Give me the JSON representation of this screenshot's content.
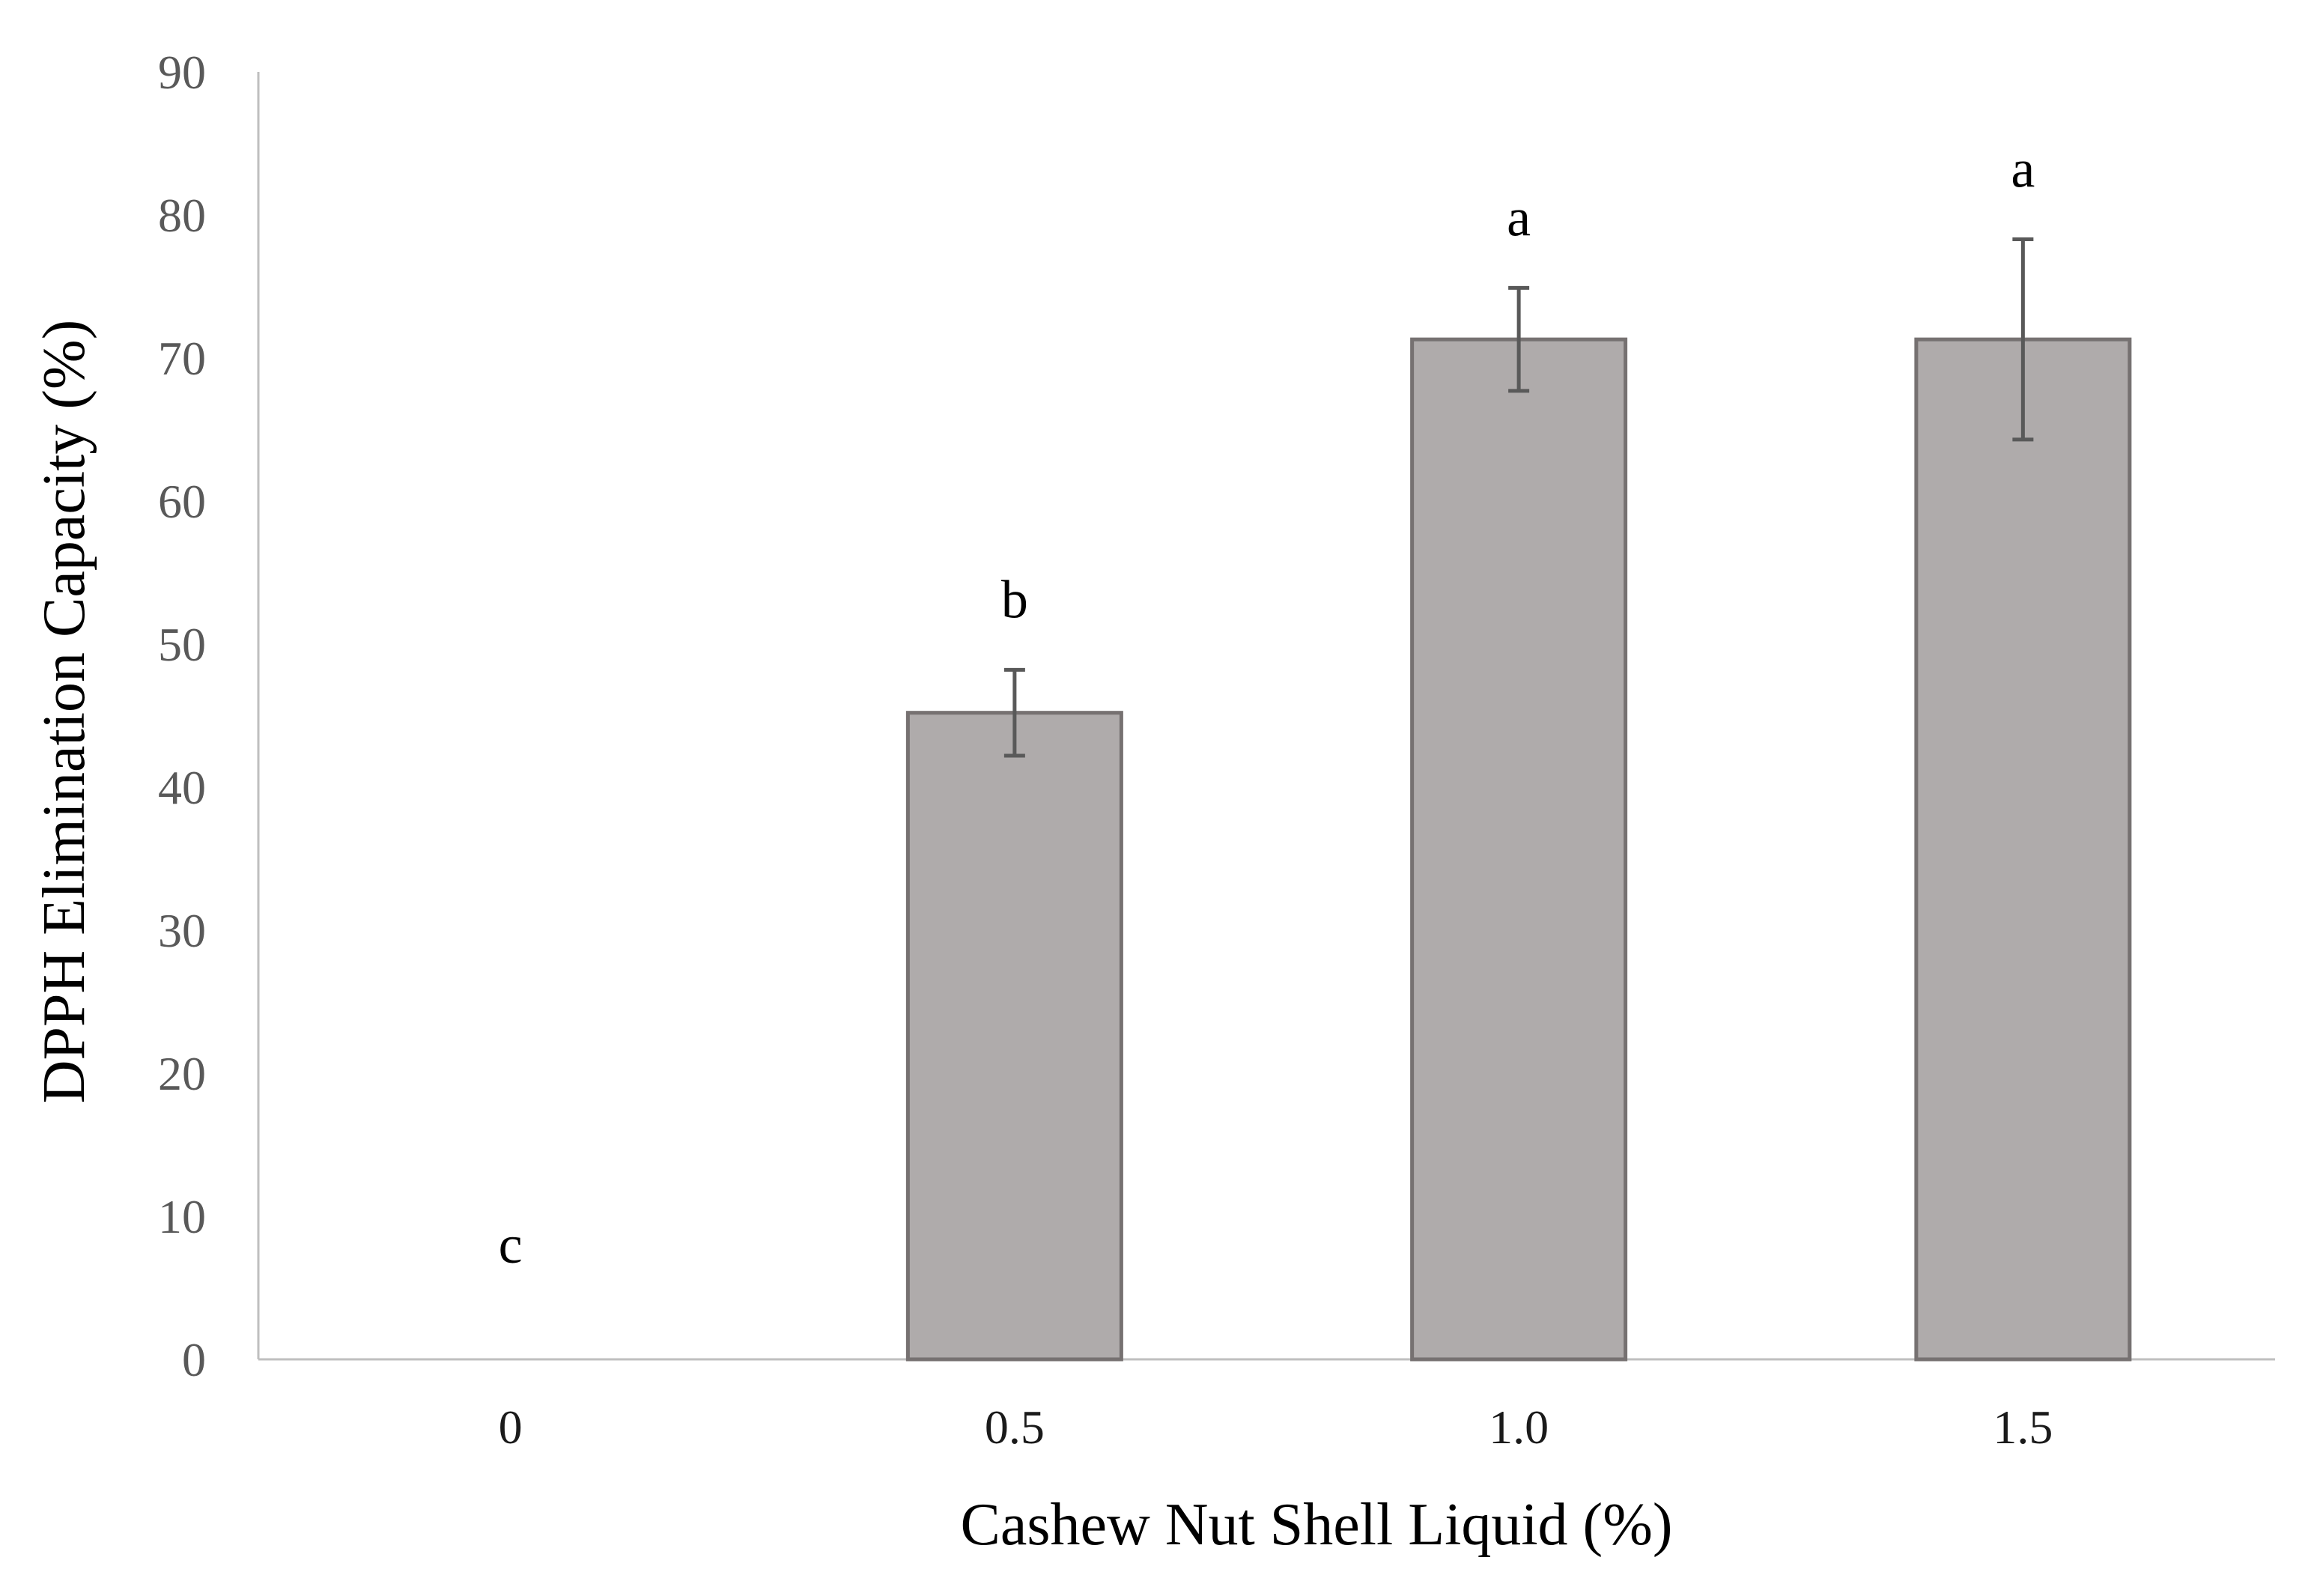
{
  "chart_data": {
    "type": "bar",
    "title": "",
    "xlabel": "Cashew Nut Shell Liquid (%)",
    "ylabel": "DPPH Elimination Capacity (%)",
    "categories": [
      "0",
      "0.5",
      "1.0",
      "1.5"
    ],
    "values": [
      0,
      45.2,
      71.3,
      71.3
    ],
    "error": [
      0,
      3.0,
      3.6,
      7.0
    ],
    "significance_letters": [
      "c",
      "b",
      "a",
      "a"
    ],
    "ylim": [
      0,
      90
    ],
    "yticks": [
      "0",
      "10",
      "20",
      "30",
      "40",
      "50",
      "60",
      "70",
      "80",
      "90"
    ],
    "grid": false,
    "legend": "none",
    "colors": {
      "bar_fill": "#afabab",
      "bar_stroke": "#767171",
      "error_bar": "#595959",
      "axis": "#bfbfbf"
    }
  }
}
